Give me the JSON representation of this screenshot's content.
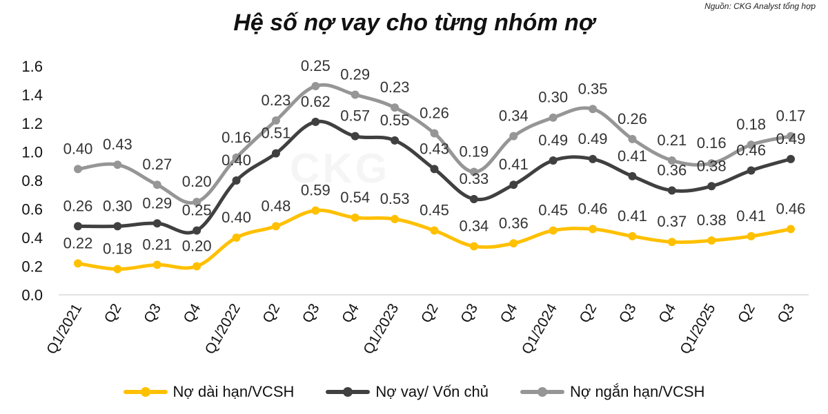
{
  "title": "Hệ số nợ vay cho từng nhóm nợ",
  "source": "Nguồn: CKG Analyst tổng hợp",
  "watermark": "CKG",
  "colors": {
    "long_term": "#FFC000",
    "loan_equity": "#404040",
    "short_term": "#969696"
  },
  "chart_data": {
    "type": "line",
    "categories": [
      "Q1/2021",
      "Q2",
      "Q3",
      "Q4",
      "Q1/2022",
      "Q2",
      "Q3",
      "Q4",
      "Q1/2023",
      "Q2",
      "Q3",
      "Q4",
      "Q1/2024",
      "Q2",
      "Q3",
      "Q4",
      "Q1/2025",
      "Q2",
      "Q3"
    ],
    "ylim": [
      0,
      1.6
    ],
    "yticks": [
      "0.0",
      "0.2",
      "0.4",
      "0.6",
      "0.8",
      "1.0",
      "1.2",
      "1.4",
      "1.6"
    ],
    "series": [
      {
        "name": "Nợ dài hạn/VCSH",
        "values": [
          0.22,
          0.18,
          0.21,
          0.2,
          0.4,
          0.48,
          0.59,
          0.54,
          0.53,
          0.45,
          0.34,
          0.36,
          0.45,
          0.46,
          0.41,
          0.37,
          0.38,
          0.41,
          0.46
        ],
        "labels": [
          "0.22",
          "0.18",
          "0.21",
          "0.20",
          "0.40",
          "0.48",
          "0.59",
          "0.54",
          "0.53",
          "0.45",
          "0.34",
          "0.36",
          "0.45",
          "0.46",
          "0.41",
          "0.37",
          "0.38",
          "0.41",
          "0.46"
        ]
      },
      {
        "name": "Nợ vay/ Vốn chủ",
        "values": [
          0.48,
          0.48,
          0.5,
          0.45,
          0.8,
          0.99,
          1.21,
          1.11,
          1.08,
          0.88,
          0.67,
          0.77,
          0.94,
          0.95,
          0.83,
          0.73,
          0.76,
          0.87,
          0.95
        ],
        "labels": [
          "0.26",
          "0.30",
          "0.29",
          "0.25",
          "0.40",
          "0.51",
          "0.62",
          "0.57",
          "0.55",
          "0.43",
          "0.33",
          "0.41",
          "0.49",
          "0.49",
          "0.41",
          "0.36",
          "0.38",
          "0.46",
          "0.49"
        ]
      },
      {
        "name": "Nợ ngắn hạn/VCSH",
        "values": [
          0.88,
          0.91,
          0.77,
          0.65,
          0.96,
          1.22,
          1.46,
          1.4,
          1.31,
          1.13,
          0.86,
          1.11,
          1.24,
          1.3,
          1.09,
          0.94,
          0.92,
          1.05,
          1.11
        ],
        "labels": [
          "0.40",
          "0.43",
          "0.27",
          "0.20",
          "0.16",
          "0.23",
          "0.25",
          "0.29",
          "0.23",
          "0.26",
          "0.19",
          "0.34",
          "0.30",
          "0.35",
          "0.26",
          "0.21",
          "0.16",
          "0.18",
          "0.17"
        ]
      }
    ],
    "legend_position": "bottom",
    "grid": false
  }
}
